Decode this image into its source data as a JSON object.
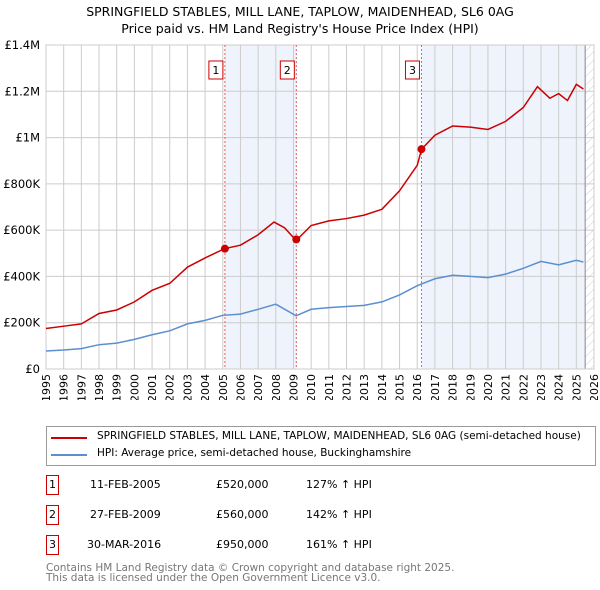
{
  "chart_data": {
    "type": "line",
    "title": "SPRINGFIELD STABLES, MILL LANE, TAPLOW, MAIDENHEAD, SL6 0AG",
    "subtitle": "Price paid vs. HM Land Registry's House Price Index (HPI)",
    "xlim": [
      1995,
      2026
    ],
    "ylim": [
      0,
      1400000
    ],
    "x_ticks": [
      "1995",
      "1996",
      "1997",
      "1998",
      "1999",
      "2000",
      "2001",
      "2002",
      "2003",
      "2004",
      "2005",
      "2006",
      "2007",
      "2008",
      "2009",
      "2010",
      "2011",
      "2012",
      "2013",
      "2014",
      "2015",
      "2016",
      "2017",
      "2018",
      "2019",
      "2020",
      "2021",
      "2022",
      "2023",
      "2024",
      "2025",
      "2026"
    ],
    "y_ticks": [
      {
        "v": 0,
        "label": "£0"
      },
      {
        "v": 200000,
        "label": "£200K"
      },
      {
        "v": 400000,
        "label": "£400K"
      },
      {
        "v": 600000,
        "label": "£600K"
      },
      {
        "v": 800000,
        "label": "£800K"
      },
      {
        "v": 1000000,
        "label": "£1M"
      },
      {
        "v": 1200000,
        "label": "£1.2M"
      },
      {
        "v": 1400000,
        "label": "£1.4M"
      }
    ],
    "series": [
      {
        "name": "SPRINGFIELD STABLES, MILL LANE, TAPLOW, MAIDENHEAD, SL6 0AG (semi-detached house)",
        "color": "#cc0000",
        "x": [
          1995,
          1996,
          1997,
          1998,
          1999,
          2000,
          2001,
          2002,
          2003,
          2004,
          2005.1,
          2006,
          2007,
          2007.9,
          2008.5,
          2009.15,
          2010,
          2011,
          2012,
          2013,
          2014,
          2015,
          2016,
          2016.25,
          2017,
          2018,
          2019,
          2020,
          2021,
          2022,
          2022.8,
          2023.5,
          2024,
          2024.5,
          2025,
          2025.4
        ],
        "values": [
          175000,
          185000,
          195000,
          240000,
          255000,
          290000,
          340000,
          370000,
          440000,
          480000,
          520000,
          535000,
          580000,
          635000,
          610000,
          555000,
          620000,
          640000,
          650000,
          665000,
          690000,
          770000,
          880000,
          950000,
          1010000,
          1050000,
          1045000,
          1035000,
          1070000,
          1130000,
          1220000,
          1170000,
          1190000,
          1160000,
          1230000,
          1210000
        ]
      },
      {
        "name": "HPI: Average price, semi-detached house, Buckinghamshire",
        "color": "#5b8fd0",
        "x": [
          1995,
          1996,
          1997,
          1998,
          1999,
          2000,
          2001,
          2002,
          2003,
          2004,
          2005,
          2006,
          2007,
          2008,
          2009.15,
          2010,
          2011,
          2012,
          2013,
          2014,
          2015,
          2016,
          2017,
          2018,
          2019,
          2020,
          2021,
          2022,
          2023,
          2024,
          2025,
          2025.4
        ],
        "values": [
          78000,
          82000,
          88000,
          105000,
          112000,
          128000,
          148000,
          165000,
          195000,
          210000,
          232000,
          237000,
          258000,
          280000,
          230000,
          258000,
          265000,
          270000,
          275000,
          290000,
          320000,
          360000,
          390000,
          405000,
          400000,
          395000,
          410000,
          435000,
          465000,
          450000,
          470000,
          462000
        ]
      }
    ],
    "shaded_ranges": [
      [
        2005.12,
        2009.16
      ],
      [
        2016.24,
        2025.5
      ]
    ],
    "forecast_start": 2025.5,
    "sales": [
      {
        "label": "1",
        "x": 2005.12,
        "value": 520000,
        "date": "11-FEB-2005",
        "price": "£520,000",
        "hpi": "127% ↑ HPI"
      },
      {
        "label": "2",
        "x": 2009.16,
        "value": 560000,
        "date": "27-FEB-2009",
        "price": "£560,000",
        "hpi": "142% ↑ HPI"
      },
      {
        "label": "3",
        "x": 2016.24,
        "value": 950000,
        "date": "30-MAR-2016",
        "price": "£950,000",
        "hpi": "161% ↑ HPI"
      }
    ]
  },
  "footer": {
    "line1": "Contains HM Land Registry data © Crown copyright and database right 2025.",
    "line2": "This data is licensed under the Open Government Licence v3.0."
  }
}
